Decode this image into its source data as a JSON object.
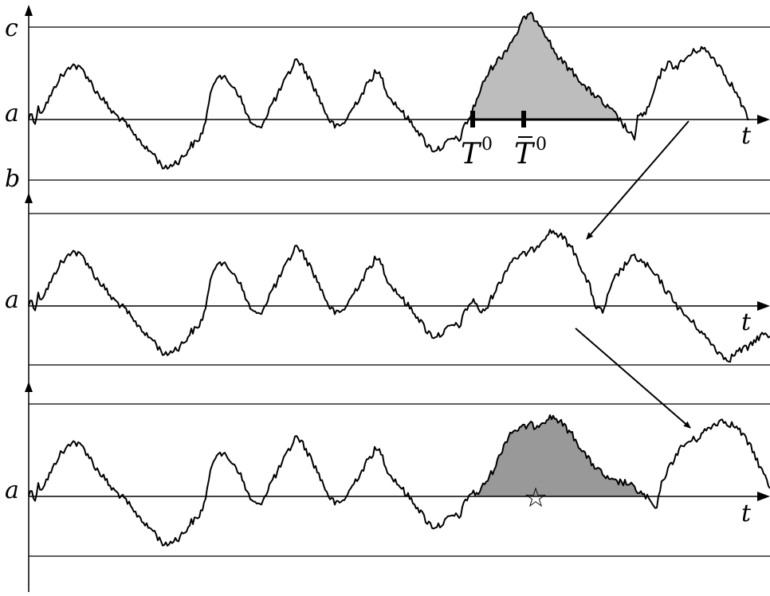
{
  "panels": [
    {
      "id": "top",
      "labels": {
        "upper": "c",
        "level": "a",
        "lower": "b",
        "axis": "t"
      },
      "markers": {
        "hit_time": "T",
        "hit_sup": "0",
        "bar_time": "T",
        "bar_sup": "0"
      },
      "excursion_fill": "#bdbdbd"
    },
    {
      "id": "middle",
      "labels": {
        "level": "a",
        "axis": "t"
      }
    },
    {
      "id": "bottom",
      "labels": {
        "level": "a",
        "axis": "t"
      },
      "star_symbol": "☆",
      "excursion_fill": "#999999"
    }
  ],
  "colors": {
    "line": "#000000",
    "background": "#ffffff"
  }
}
